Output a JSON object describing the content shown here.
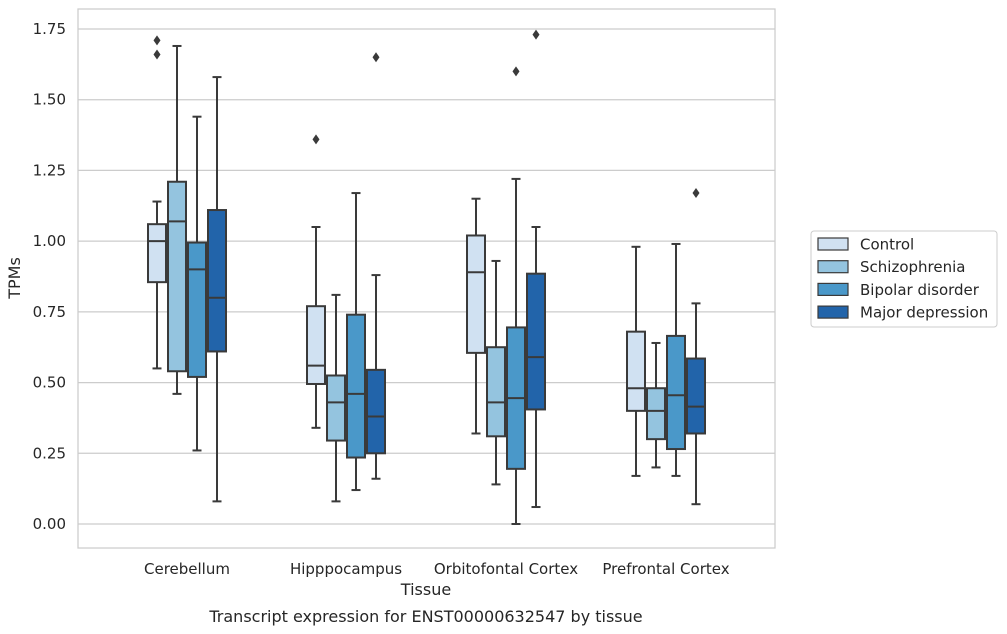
{
  "chart_data": {
    "type": "boxplot",
    "xlabel": "Tissue",
    "ylabel": "TPMs",
    "caption": "Transcript expression for ENST00000632547 by tissue",
    "ylim": [
      -0.085,
      1.82
    ],
    "yticks": [
      "0.00",
      "0.25",
      "0.50",
      "0.75",
      "1.00",
      "1.25",
      "1.50",
      "1.75"
    ],
    "ytick_values": [
      0,
      0.25,
      0.5,
      0.75,
      1.0,
      1.25,
      1.5,
      1.75
    ],
    "grid": "horizontal",
    "legend_position": "right",
    "categories": [
      "Cerebellum",
      "Hipppocampus",
      "Orbitofontal Cortex",
      "Prefrontal Cortex"
    ],
    "series": [
      {
        "name": "Control",
        "color": "#d0e1f2",
        "boxes": [
          {
            "whislo": 0.55,
            "q1": 0.855,
            "median": 1.0,
            "q3": 1.06,
            "whishi": 1.14,
            "fliers": [
              1.71,
              1.66
            ]
          },
          {
            "whislo": 0.34,
            "q1": 0.495,
            "median": 0.56,
            "q3": 0.77,
            "whishi": 1.05,
            "fliers": [
              1.36
            ]
          },
          {
            "whislo": 0.32,
            "q1": 0.605,
            "median": 0.89,
            "q3": 1.02,
            "whishi": 1.15,
            "fliers": []
          },
          {
            "whislo": 0.17,
            "q1": 0.4,
            "median": 0.48,
            "q3": 0.68,
            "whishi": 0.98,
            "fliers": []
          }
        ]
      },
      {
        "name": "Schizophrenia",
        "color": "#94c4df",
        "boxes": [
          {
            "whislo": 0.46,
            "q1": 0.54,
            "median": 1.07,
            "q3": 1.21,
            "whishi": 1.69,
            "fliers": []
          },
          {
            "whislo": 0.08,
            "q1": 0.295,
            "median": 0.43,
            "q3": 0.525,
            "whishi": 0.81,
            "fliers": []
          },
          {
            "whislo": 0.14,
            "q1": 0.31,
            "median": 0.43,
            "q3": 0.625,
            "whishi": 0.93,
            "fliers": []
          },
          {
            "whislo": 0.2,
            "q1": 0.3,
            "median": 0.4,
            "q3": 0.48,
            "whishi": 0.64,
            "fliers": []
          }
        ]
      },
      {
        "name": "Bipolar disorder",
        "color": "#4a98c9",
        "boxes": [
          {
            "whislo": 0.26,
            "q1": 0.52,
            "median": 0.9,
            "q3": 0.995,
            "whishi": 1.44,
            "fliers": []
          },
          {
            "whislo": 0.12,
            "q1": 0.235,
            "median": 0.46,
            "q3": 0.74,
            "whishi": 1.17,
            "fliers": []
          },
          {
            "whislo": 0.0,
            "q1": 0.195,
            "median": 0.445,
            "q3": 0.695,
            "whishi": 1.22,
            "fliers": [
              1.6
            ]
          },
          {
            "whislo": 0.17,
            "q1": 0.265,
            "median": 0.455,
            "q3": 0.665,
            "whishi": 0.99,
            "fliers": []
          }
        ]
      },
      {
        "name": "Major depression",
        "color": "#2264aa",
        "boxes": [
          {
            "whislo": 0.08,
            "q1": 0.61,
            "median": 0.8,
            "q3": 1.11,
            "whishi": 1.58,
            "fliers": []
          },
          {
            "whislo": 0.16,
            "q1": 0.25,
            "median": 0.38,
            "q3": 0.545,
            "whishi": 0.88,
            "fliers": [
              1.65
            ]
          },
          {
            "whislo": 0.06,
            "q1": 0.405,
            "median": 0.59,
            "q3": 0.885,
            "whishi": 1.05,
            "fliers": [
              1.73
            ]
          },
          {
            "whislo": 0.07,
            "q1": 0.32,
            "median": 0.415,
            "q3": 0.585,
            "whishi": 0.78,
            "fliers": [
              1.17
            ]
          }
        ]
      }
    ]
  }
}
